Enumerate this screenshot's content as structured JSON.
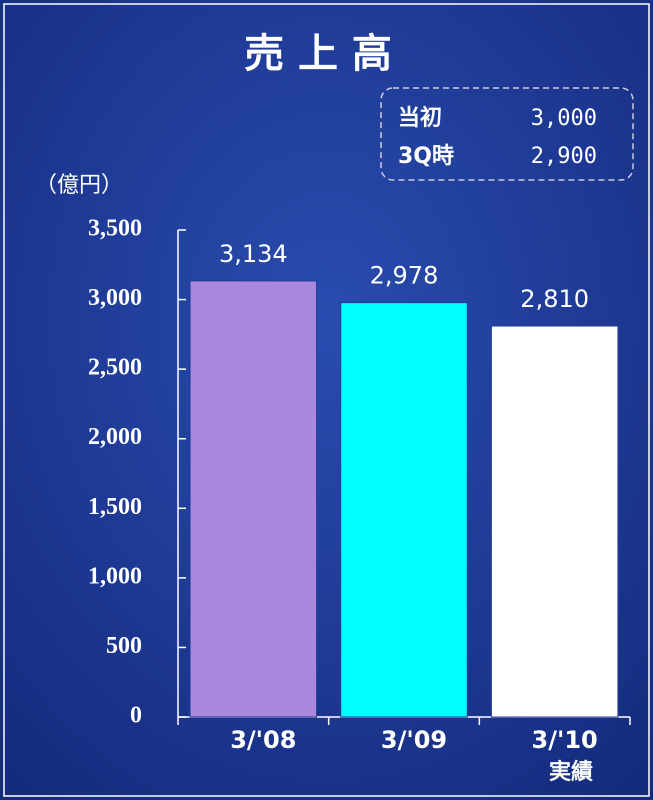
{
  "chart_data": {
    "type": "bar",
    "title": "売 上 高",
    "unit_label": "（億円）",
    "categories": [
      "3/'08",
      "3/'09",
      "3/'10"
    ],
    "category_note": "実績",
    "values": [
      3134,
      2978,
      2810
    ],
    "value_labels": [
      "3,134",
      "2,978",
      "2,810"
    ],
    "colors": [
      "#aa88dd",
      "#00ffff",
      "#ffffff"
    ],
    "ylim": [
      0,
      3500
    ],
    "yticks": [
      0,
      500,
      {
        "value": 1000,
        "label": "1,000"
      },
      {
        "value": 1500,
        "label": "1,500"
      },
      {
        "value": 2000,
        "label": "2,000"
      },
      {
        "value": 2500,
        "label": "2,500"
      },
      {
        "value": 3000,
        "label": "3,000"
      },
      {
        "value": 3500,
        "label": "3,500"
      }
    ],
    "forecasts": [
      {
        "label": "当初",
        "value": "3,000"
      },
      {
        "label": "3Q時",
        "value": "2,900"
      }
    ]
  }
}
